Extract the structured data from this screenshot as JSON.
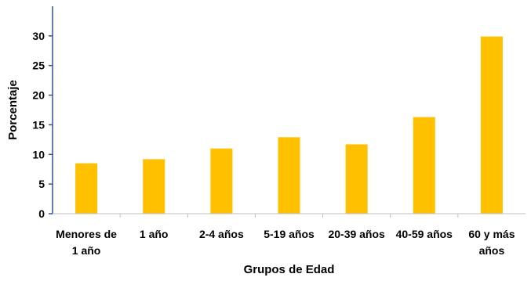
{
  "chart_data": {
    "type": "bar",
    "title": "",
    "xlabel": "Grupos de Edad",
    "ylabel": "Porcentaje",
    "categories": [
      [
        "Menores de",
        "1 año"
      ],
      [
        "1 año"
      ],
      [
        "2-4 años"
      ],
      [
        "5-19 años"
      ],
      [
        "20-39 años"
      ],
      [
        "40-59 años"
      ],
      [
        "60 y más",
        "años"
      ]
    ],
    "values": [
      8.5,
      9.2,
      11.0,
      12.9,
      11.7,
      16.3,
      29.9
    ],
    "ylim": [
      0,
      35
    ],
    "yticks": [
      0,
      5,
      10,
      15,
      20,
      25,
      30
    ],
    "grid": false,
    "bar_color": "#FFC000",
    "axis_color": "#2F5597"
  }
}
